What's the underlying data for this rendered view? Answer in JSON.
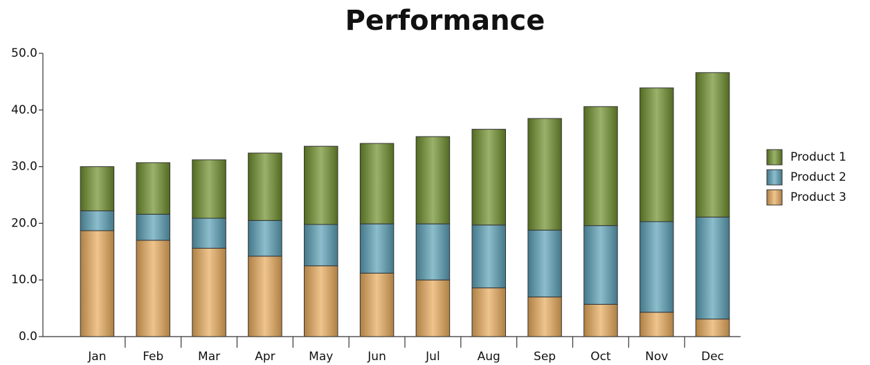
{
  "chart_data": {
    "type": "stacked_bar",
    "title": "Performance",
    "categories": [
      "Jan",
      "Feb",
      "Mar",
      "Apr",
      "May",
      "Jun",
      "Jul",
      "Aug",
      "Sep",
      "Oct",
      "Nov",
      "Dec"
    ],
    "series": [
      {
        "name": "Product 1",
        "color": "#6e8f2c",
        "values": [
          7.8,
          9.1,
          10.3,
          11.9,
          13.8,
          14.2,
          15.4,
          16.9,
          19.7,
          21.0,
          23.6,
          25.5
        ]
      },
      {
        "name": "Product 2",
        "color": "#5aa0b6",
        "values": [
          3.5,
          4.6,
          5.3,
          6.3,
          7.3,
          8.7,
          9.9,
          11.1,
          11.8,
          13.9,
          16.0,
          18.0
        ]
      },
      {
        "name": "Product 3",
        "color": "#e8aa5c",
        "values": [
          18.7,
          17.0,
          15.6,
          14.2,
          12.5,
          11.2,
          10.0,
          8.6,
          7.0,
          5.7,
          4.3,
          3.1
        ]
      }
    ],
    "ylim": [
      0,
      50
    ],
    "yticks": [
      {
        "value": 0,
        "label": "0.0"
      },
      {
        "value": 10,
        "label": "10.0"
      },
      {
        "value": 20,
        "label": "20.0"
      },
      {
        "value": 30,
        "label": "30.0"
      },
      {
        "value": 40,
        "label": "40.0"
      },
      {
        "value": 50,
        "label": "50.0"
      }
    ],
    "legend": "right"
  }
}
